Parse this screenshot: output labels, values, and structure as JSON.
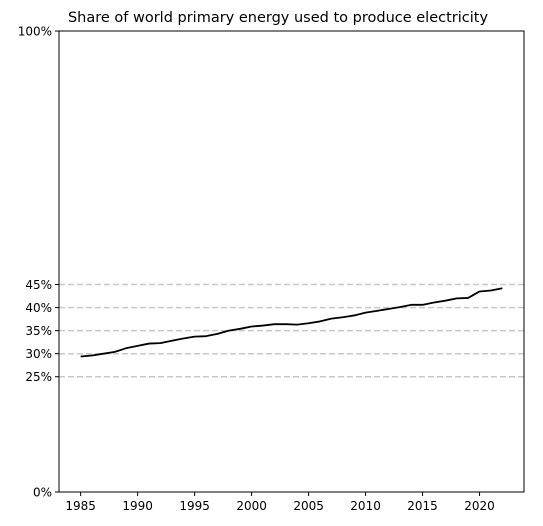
{
  "chart_data": {
    "type": "line",
    "title": "Share of world primary energy used to produce electricity",
    "xlabel": "",
    "ylabel": "",
    "xlim": [
      1983.1,
      2023.9
    ],
    "ylim": [
      0,
      100
    ],
    "x_ticks": [
      1985,
      1990,
      1995,
      2000,
      2005,
      2010,
      2015,
      2020
    ],
    "x_tick_labels": [
      "1985",
      "1990",
      "1995",
      "2000",
      "2005",
      "2010",
      "2015",
      "2020"
    ],
    "y_ticks": [
      0,
      25,
      30,
      35,
      40,
      45,
      100
    ],
    "y_tick_labels": [
      "0%",
      "25%",
      "30%",
      "35%",
      "40%",
      "45%",
      "100%"
    ],
    "reference_lines": [
      25,
      30,
      35,
      40,
      45
    ],
    "grid": false,
    "line_color": "#000000",
    "reference_line_color": "#c8c8c8",
    "series": [
      {
        "x": [
          1985,
          1986,
          1987,
          1988,
          1989,
          1990,
          1991,
          1992,
          1993,
          1994,
          1995,
          1996,
          1997,
          1998,
          1999,
          2000,
          2001,
          2002,
          2003,
          2004,
          2005,
          2006,
          2007,
          2008,
          2009,
          2010,
          2011,
          2012,
          2013,
          2014,
          2015,
          2016,
          2017,
          2018,
          2019,
          2020,
          2021,
          2022
        ],
        "values": [
          29.4,
          29.6,
          30.0,
          30.4,
          31.2,
          31.7,
          32.2,
          32.3,
          32.8,
          33.3,
          33.7,
          33.8,
          34.3,
          35.0,
          35.4,
          35.9,
          36.1,
          36.4,
          36.4,
          36.3,
          36.6,
          37.0,
          37.6,
          37.9,
          38.3,
          38.9,
          39.3,
          39.7,
          40.1,
          40.6,
          40.6,
          41.1,
          41.5,
          42.0,
          42.1,
          43.5,
          43.7,
          44.2
        ]
      }
    ]
  }
}
